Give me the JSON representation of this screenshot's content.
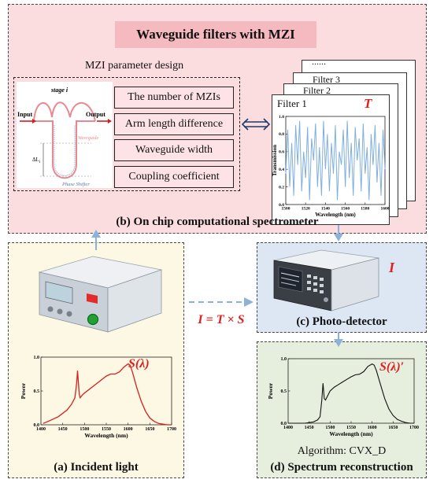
{
  "panel_b": {
    "banner": "Waveguide filters with MZI",
    "mzi_heading": "MZI parameter design",
    "mzi_diagram": {
      "stage": "stage i",
      "input": "Input",
      "output": "Output",
      "waveguide": "Waveguide",
      "delta": "ΔL",
      "delta_sub": "i",
      "phase_shifter": "Phase Shifter"
    },
    "params": [
      "The number of MZIs",
      "Arm length difference",
      "Waveguide width",
      "Coupling coefficient"
    ],
    "filters": {
      "dots": "......",
      "filter3": "Filter 3",
      "filter2": "Filter 2",
      "filter1": "Filter 1",
      "symbol": "T"
    },
    "caption": "(b) On chip computational spectrometer"
  },
  "equation": "I = T × S",
  "panel_a": {
    "symbol": "S(λ)",
    "caption": "(a) Incident light"
  },
  "panel_c": {
    "symbol": "I",
    "caption": "(c) Photo-detector"
  },
  "panel_d": {
    "symbol": "S(λ)′",
    "algorithm": "Algorithm: CVX_D",
    "caption": "(d) Spectrum reconstruction"
  },
  "colors": {
    "pink_bg": "#fbdde0",
    "yellow_bg": "#fdf8e3",
    "blue_bg": "#dde6f3",
    "green_bg": "#e6efdd",
    "filter_line": "#7faee0",
    "source_line": "#d62020",
    "recon_line": "#111111",
    "arrow": "#8bb3d9",
    "accent_red": "#e02020"
  },
  "chart_data": [
    {
      "type": "line",
      "title": "",
      "xlabel": "Wavelength (nm)",
      "ylabel": "Transmission",
      "xlim": [
        1500,
        1600
      ],
      "ylim": [
        0,
        1.0
      ],
      "xticks": [
        "1500",
        "1520",
        "1540",
        "1560",
        "1580",
        "1600"
      ],
      "yticks": [
        "0.0",
        "0.2",
        "0.4",
        "0.6",
        "0.8",
        "1.0"
      ],
      "series": [
        {
          "x": [
            1500,
            1502,
            1504,
            1506,
            1508,
            1510,
            1512,
            1514,
            1516,
            1518,
            1520,
            1522,
            1524,
            1526,
            1528,
            1530,
            1532,
            1534,
            1536,
            1538,
            1540,
            1542,
            1544,
            1546,
            1548,
            1550,
            1552,
            1554,
            1556,
            1558,
            1560,
            1562,
            1564,
            1566,
            1568,
            1570,
            1572,
            1574,
            1576,
            1578,
            1580,
            1582,
            1584,
            1586,
            1588,
            1590,
            1592,
            1594,
            1596,
            1598,
            1600
          ],
          "y": [
            0.35,
            0.85,
            0.2,
            0.7,
            0.1,
            0.9,
            0.45,
            0.95,
            0.15,
            0.6,
            0.3,
            0.88,
            0.05,
            0.75,
            0.5,
            0.92,
            0.2,
            0.65,
            0.1,
            0.95,
            0.4,
            0.8,
            0.15,
            0.7,
            0.35,
            0.9,
            0.05,
            0.6,
            0.45,
            0.85,
            0.2,
            0.95,
            0.3,
            0.7,
            0.1,
            0.88,
            0.5,
            0.75,
            0.15,
            0.92,
            0.35,
            0.65,
            0.05,
            0.8,
            0.45,
            0.9,
            0.25,
            0.7,
            0.1,
            0.85,
            0.4
          ]
        }
      ]
    },
    {
      "type": "line",
      "title": "",
      "xlabel": "Wavelength (nm)",
      "ylabel": "Power",
      "xlim": [
        1400,
        1700
      ],
      "ylim": [
        0,
        1.0
      ],
      "xticks": [
        "1400",
        "1450",
        "1500",
        "1550",
        "1600",
        "1650",
        "1700"
      ],
      "yticks": [
        "0.0",
        "0.5",
        "1.0"
      ],
      "series": [
        {
          "x": [
            1405,
            1420,
            1440,
            1460,
            1470,
            1478,
            1482,
            1484,
            1486,
            1488,
            1490,
            1495,
            1500,
            1510,
            1520,
            1530,
            1540,
            1550,
            1560,
            1570,
            1580,
            1590,
            1600,
            1605,
            1610,
            1620,
            1630,
            1640,
            1650,
            1660,
            1670,
            1680,
            1690,
            1700
          ],
          "y": [
            0.02,
            0.06,
            0.12,
            0.22,
            0.3,
            0.4,
            0.62,
            0.8,
            0.62,
            0.45,
            0.4,
            0.44,
            0.47,
            0.52,
            0.57,
            0.62,
            0.67,
            0.72,
            0.75,
            0.75,
            0.78,
            0.85,
            0.9,
            0.88,
            0.78,
            0.55,
            0.35,
            0.2,
            0.1,
            0.05,
            0.02,
            0.01,
            0.0,
            0.0
          ]
        }
      ]
    },
    {
      "type": "line",
      "title": "",
      "xlabel": "Wavelength (nm)",
      "ylabel": "Power",
      "xlim": [
        1400,
        1700
      ],
      "ylim": [
        0,
        1.0
      ],
      "xticks": [
        "1400",
        "1450",
        "1500",
        "1550",
        "1600",
        "1650",
        "1700"
      ],
      "yticks": [
        "0.0",
        "0.5",
        "1.0"
      ],
      "series": [
        {
          "x": [
            1400,
            1420,
            1440,
            1460,
            1470,
            1476,
            1480,
            1483,
            1486,
            1489,
            1492,
            1496,
            1500,
            1510,
            1520,
            1530,
            1540,
            1550,
            1560,
            1570,
            1580,
            1590,
            1600,
            1605,
            1610,
            1620,
            1630,
            1640,
            1650,
            1660,
            1670,
            1680,
            1690,
            1700
          ],
          "y": [
            0.0,
            0.0,
            0.0,
            0.02,
            0.05,
            0.1,
            0.35,
            0.62,
            0.38,
            0.36,
            0.4,
            0.45,
            0.5,
            0.56,
            0.6,
            0.64,
            0.68,
            0.72,
            0.75,
            0.76,
            0.8,
            0.88,
            0.92,
            0.9,
            0.82,
            0.6,
            0.38,
            0.22,
            0.12,
            0.06,
            0.03,
            0.01,
            0.0,
            0.0
          ]
        }
      ]
    }
  ]
}
